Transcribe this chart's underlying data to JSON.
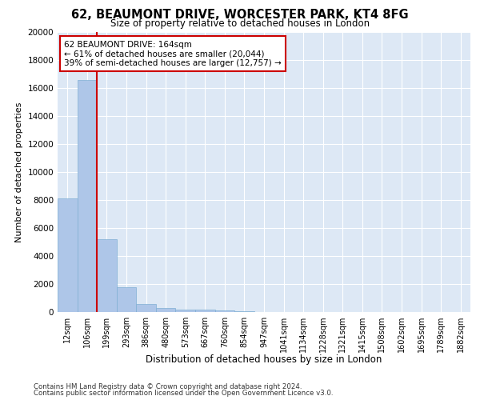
{
  "title_line1": "62, BEAUMONT DRIVE, WORCESTER PARK, KT4 8FG",
  "title_line2": "Size of property relative to detached houses in London",
  "xlabel": "Distribution of detached houses by size in London",
  "ylabel": "Number of detached properties",
  "bar_labels": [
    "12sqm",
    "106sqm",
    "199sqm",
    "293sqm",
    "386sqm",
    "480sqm",
    "573sqm",
    "667sqm",
    "760sqm",
    "854sqm",
    "947sqm",
    "1041sqm",
    "1134sqm",
    "1228sqm",
    "1321sqm",
    "1415sqm",
    "1508sqm",
    "1602sqm",
    "1695sqm",
    "1789sqm",
    "1882sqm"
  ],
  "bar_values": [
    8100,
    16600,
    5200,
    1800,
    600,
    300,
    150,
    150,
    100,
    30,
    20,
    10,
    8,
    5,
    3,
    2,
    2,
    1,
    1,
    1,
    1
  ],
  "bar_color": "#aec6e8",
  "bar_edge_color": "#7fafd4",
  "red_line_x": 1.5,
  "annotation_text": "62 BEAUMONT DRIVE: 164sqm\n← 61% of detached houses are smaller (20,044)\n39% of semi-detached houses are larger (12,757) →",
  "annotation_box_color": "#ffffff",
  "annotation_border_color": "#cc0000",
  "vline_color": "#cc0000",
  "ylim": [
    0,
    20000
  ],
  "yticks": [
    0,
    2000,
    4000,
    6000,
    8000,
    10000,
    12000,
    14000,
    16000,
    18000,
    20000
  ],
  "grid_color": "#ffffff",
  "bg_color": "#dde8f5",
  "footer_line1": "Contains HM Land Registry data © Crown copyright and database right 2024.",
  "footer_line2": "Contains public sector information licensed under the Open Government Licence v3.0."
}
